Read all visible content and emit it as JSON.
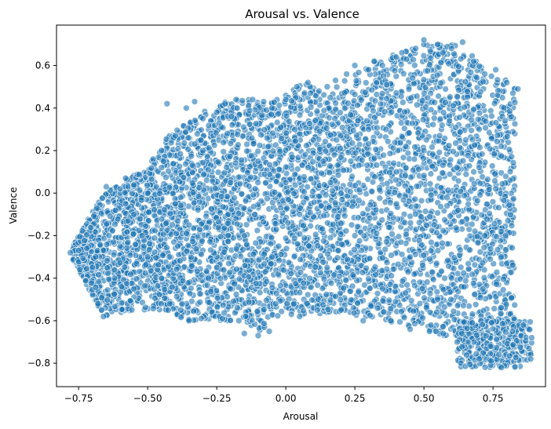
{
  "chart_data": {
    "type": "scatter",
    "title": "Arousal vs. Valence",
    "xlabel": "Arousal",
    "ylabel": "Valence",
    "xlim": [
      -0.83,
      0.94
    ],
    "ylim": [
      -0.91,
      0.79
    ],
    "xticks": [
      -0.75,
      -0.5,
      -0.25,
      0.0,
      0.25,
      0.5,
      0.75
    ],
    "xtick_labels": [
      "−0.75",
      "−0.50",
      "−0.25",
      "0.00",
      "0.25",
      "0.50",
      "0.75"
    ],
    "yticks": [
      -0.8,
      -0.6,
      -0.4,
      -0.2,
      0.0,
      0.2,
      0.4,
      0.6
    ],
    "ytick_labels": [
      "−0.8",
      "−0.6",
      "−0.4",
      "−0.2",
      "0.0",
      "0.2",
      "0.4",
      "0.6"
    ],
    "grid": false,
    "marker_color": "#1f77b4",
    "marker_edge": "#ffffff",
    "marker_alpha": 0.6,
    "points": [
      [
        -0.78,
        -0.28
      ],
      [
        -0.75,
        -0.27
      ],
      [
        -0.72,
        -0.26
      ],
      [
        -0.7,
        -0.35
      ],
      [
        -0.68,
        -0.52
      ],
      [
        -0.66,
        -0.58
      ],
      [
        -0.65,
        0.03
      ],
      [
        -0.6,
        0.02
      ],
      [
        -0.58,
        0.07
      ],
      [
        -0.55,
        -0.1
      ],
      [
        -0.52,
        -0.2
      ],
      [
        -0.5,
        -0.3
      ],
      [
        -0.48,
        0.16
      ],
      [
        -0.45,
        0.12
      ],
      [
        -0.43,
        0.42
      ],
      [
        -0.42,
        -0.52
      ],
      [
        -0.4,
        0.27
      ],
      [
        -0.38,
        -0.55
      ],
      [
        -0.36,
        0.4
      ],
      [
        -0.35,
        -0.6
      ],
      [
        -0.33,
        0.43
      ],
      [
        -0.3,
        0.35
      ],
      [
        -0.28,
        -0.4
      ],
      [
        -0.25,
        0.38
      ],
      [
        -0.22,
        0.42
      ],
      [
        -0.2,
        -0.45
      ],
      [
        -0.18,
        0.44
      ],
      [
        -0.17,
        -0.6
      ],
      [
        -0.15,
        -0.66
      ],
      [
        -0.12,
        0.44
      ],
      [
        -0.1,
        -0.67
      ],
      [
        -0.08,
        0.43
      ],
      [
        -0.06,
        -0.65
      ],
      [
        -0.05,
        0.4
      ],
      [
        0.0,
        0.44
      ],
      [
        0.02,
        -0.57
      ],
      [
        0.04,
        0.5
      ],
      [
        0.05,
        -0.58
      ],
      [
        0.08,
        0.52
      ],
      [
        0.12,
        0.48
      ],
      [
        0.15,
        0.5
      ],
      [
        0.18,
        0.53
      ],
      [
        0.2,
        -0.55
      ],
      [
        0.22,
        0.56
      ],
      [
        0.25,
        0.6
      ],
      [
        0.28,
        -0.6
      ],
      [
        0.3,
        0.58
      ],
      [
        0.32,
        0.62
      ],
      [
        0.35,
        0.6
      ],
      [
        0.38,
        -0.6
      ],
      [
        0.4,
        0.64
      ],
      [
        0.42,
        0.66
      ],
      [
        0.45,
        -0.64
      ],
      [
        0.47,
        0.68
      ],
      [
        0.5,
        0.72
      ],
      [
        0.52,
        -0.65
      ],
      [
        0.55,
        0.7
      ],
      [
        0.57,
        -0.66
      ],
      [
        0.6,
        0.68
      ],
      [
        0.62,
        -0.7
      ],
      [
        0.64,
        0.71
      ],
      [
        0.66,
        -0.7
      ],
      [
        0.68,
        0.62
      ],
      [
        0.7,
        -0.78
      ],
      [
        0.72,
        0.56
      ],
      [
        0.74,
        -0.72
      ],
      [
        0.76,
        0.58
      ],
      [
        0.78,
        -0.82
      ],
      [
        0.8,
        0.52
      ],
      [
        0.82,
        -0.65
      ],
      [
        0.84,
        0.49
      ],
      [
        0.86,
        -0.62
      ],
      [
        0.88,
        -0.73
      ],
      [
        0.89,
        -0.68
      ],
      [
        0.8,
        -0.33
      ],
      [
        0.78,
        -0.3
      ],
      [
        0.76,
        0.02
      ],
      [
        0.72,
        -0.2
      ],
      [
        0.7,
        0.3
      ],
      [
        0.68,
        0.1
      ],
      [
        0.6,
        -0.4
      ],
      [
        0.55,
        -0.5
      ],
      [
        0.5,
        0.2
      ],
      [
        0.45,
        -0.3
      ],
      [
        0.4,
        0.1
      ],
      [
        0.35,
        -0.45
      ],
      [
        0.3,
        0.3
      ],
      [
        0.25,
        -0.2
      ],
      [
        0.2,
        0.0
      ],
      [
        0.15,
        -0.35
      ],
      [
        0.1,
        0.25
      ],
      [
        0.05,
        -0.1
      ],
      [
        0.0,
        0.05
      ],
      [
        -0.05,
        -0.3
      ],
      [
        -0.1,
        0.15
      ],
      [
        -0.15,
        -0.2
      ],
      [
        -0.2,
        0.05
      ],
      [
        -0.25,
        -0.35
      ],
      [
        -0.3,
        0.2
      ],
      [
        -0.35,
        -0.15
      ],
      [
        -0.4,
        -0.05
      ],
      [
        -0.45,
        -0.4
      ],
      [
        -0.5,
        0.0
      ],
      [
        -0.55,
        -0.45
      ],
      [
        -0.6,
        -0.25
      ],
      [
        -0.62,
        -0.4
      ],
      [
        -0.64,
        -0.2
      ],
      [
        -0.58,
        -0.05
      ]
    ]
  }
}
